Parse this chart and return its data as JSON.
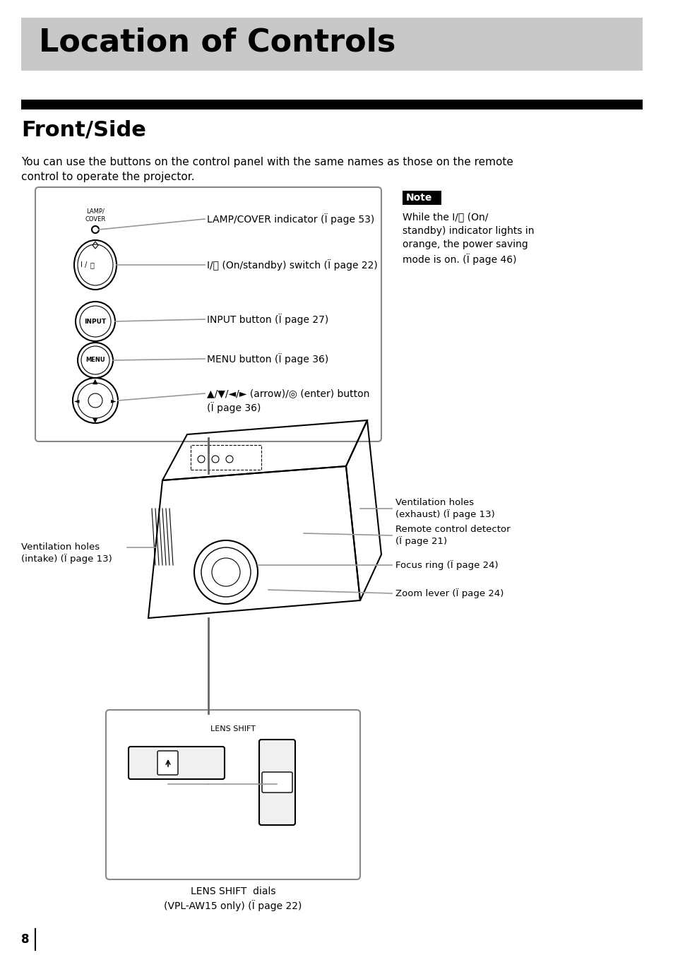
{
  "title": "Location of Controls",
  "title_bg": "#c8c8c8",
  "section": "Front/Side",
  "body_text": "You can use the buttons on the control panel with the same names as those on the remote\ncontrol to operate the projector.",
  "note_title": "Note",
  "note_text": "While the I/⏻ (On/\nstandby) indicator lights in\norange, the power saving\nmode is on. (Ï page 46)",
  "control_labels": [
    "LAMP/COVER indicator (Ï page 53)",
    "I/⏻ (On/standby) switch (Ï page 22)",
    "INPUT button (Ï page 27)",
    "MENU button (Ï page 36)",
    "▲/▼/◄/► (arrow)/◎ (enter) button\n(Ï page 36)"
  ],
  "projector_labels_right": [
    "Ventilation holes\n(exhaust) (Ï page 13)",
    "Remote control detector\n(Ï page 21)",
    "Focus ring (Ï page 24)",
    "Zoom lever (Ï page 24)"
  ],
  "projector_label_left": "Ventilation holes\n(intake) (Ï page 13)",
  "lens_shift_label": "LENS SHIFT  dials\n(VPL-AW15 only) (Ï page 22)",
  "page_number": "8",
  "bg_color": "#ffffff",
  "text_color": "#000000",
  "gray_color": "#808080",
  "light_gray": "#c8c8c8",
  "box_border": "#888888"
}
